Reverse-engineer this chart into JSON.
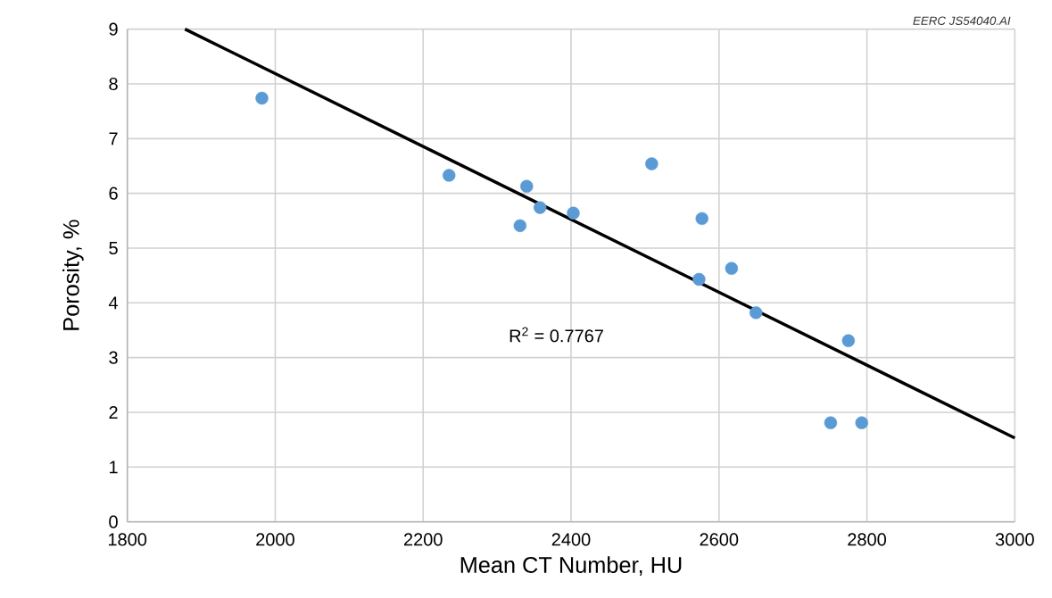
{
  "chart_data": {
    "type": "scatter",
    "xlabel": "Mean CT Number, HU",
    "ylabel": "Porosity, %",
    "xlim": [
      1800,
      3000
    ],
    "xticks": [
      1800,
      2000,
      2200,
      2400,
      2600,
      2800,
      3000
    ],
    "ylim": [
      0,
      9
    ],
    "yticks": [
      0,
      1,
      2,
      3,
      4,
      5,
      6,
      7,
      8,
      9
    ],
    "grid": true,
    "series": [
      {
        "marker": "circle",
        "color": "#5b9bd5",
        "x": [
          1982,
          2235,
          2340,
          2331,
          2358,
          2403,
          2509,
          2577,
          2573,
          2617,
          2650,
          2775,
          2751,
          2793
        ],
        "values": [
          7.74,
          6.33,
          6.13,
          5.41,
          5.74,
          5.64,
          6.54,
          5.54,
          4.43,
          4.63,
          3.82,
          3.31,
          1.81,
          1.81
        ]
      },
      {
        "type": "line",
        "marker": "none",
        "color": "#000000",
        "line_style": "solid",
        "x": [
          1878,
          3000
        ],
        "values": [
          9,
          1.53
        ]
      }
    ],
    "annotations": [
      "R$^{2}$ = 0.7767",
      "EERC JS54040.AI"
    ]
  }
}
